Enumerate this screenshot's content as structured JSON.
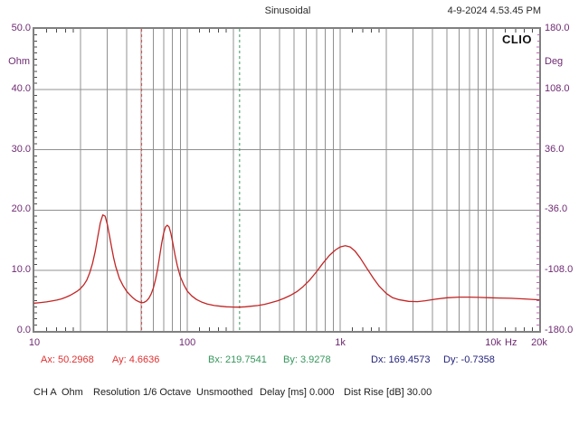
{
  "header": {
    "title": "Sinusoidal",
    "timestamp": "4-9-2024 4.53.45 PM"
  },
  "branding": {
    "logo": "CLIO"
  },
  "readout": {
    "ax": "Ax: 50.2968",
    "ay": "Ay: 4.6636",
    "bx": "Bx: 219.7541",
    "by": "By: 3.9278",
    "dx": "Dx: 169.4573",
    "dy": "Dy: -0.7358"
  },
  "status": {
    "items": [
      "CH A",
      "Ohm",
      "Resolution 1/6 Octave",
      "Unsmoothed",
      "Delay [ms] 0.000",
      "Dist Rise [dB] 30.00"
    ]
  },
  "colors": {
    "curve": "#c22525",
    "cursor_a": "#e05050",
    "cursor_b": "#36975c",
    "readout_a": "#e03030",
    "readout_b": "#36975c",
    "readout_d": "#1f1f7a",
    "axis_label": "#6e2a72",
    "grid": "#909090",
    "border": "#808080",
    "tick_minor": "#4a4a4a",
    "tick_right": "#c468b8",
    "header_text": "#2a2a2a"
  },
  "chart_data": {
    "type": "line",
    "title": "Sinusoidal",
    "x_axis": {
      "scale": "log",
      "unit": "Hz",
      "min": 10,
      "max": 20000,
      "ticks": [
        {
          "label": "10",
          "f": 10
        },
        {
          "label": "100",
          "f": 100
        },
        {
          "label": "1k",
          "f": 1000
        },
        {
          "label": "10k",
          "f": 10000
        },
        {
          "label": "20k",
          "f": 20000
        }
      ],
      "grid_freqs": [
        20,
        30,
        40,
        50,
        60,
        70,
        80,
        90,
        100,
        200,
        300,
        400,
        500,
        600,
        700,
        800,
        900,
        1000,
        2000,
        3000,
        4000,
        5000,
        6000,
        7000,
        8000,
        9000,
        10000
      ]
    },
    "y_left": {
      "unit": "Ohm",
      "min": 0,
      "max": 50,
      "ticks": [
        {
          "label": "50.0",
          "value": 50
        },
        {
          "label": "40.0",
          "value": 40
        },
        {
          "label": "30.0",
          "value": 30
        },
        {
          "label": "20.0",
          "value": 20
        },
        {
          "label": "10.0",
          "value": 10
        },
        {
          "label": "0.0",
          "value": 0
        }
      ]
    },
    "y_right": {
      "unit": "Deg",
      "min": -180,
      "max": 180,
      "ticks": [
        {
          "label": "180.0",
          "value": 180
        },
        {
          "label": "108.0",
          "value": 108
        },
        {
          "label": "36.0",
          "value": 36
        },
        {
          "label": "-36.0",
          "value": -36
        },
        {
          "label": "-108.0",
          "value": -108
        },
        {
          "label": "-180.0",
          "value": -180
        }
      ]
    },
    "cursors": {
      "a": {
        "freq": 50.2968,
        "value": 4.6636
      },
      "b": {
        "freq": 219.7541,
        "value": 3.9278
      },
      "delta": {
        "freq": 169.4573,
        "value": -0.7358
      }
    },
    "series": [
      {
        "name": "impedance-magnitude",
        "points": [
          [
            10,
            4.6
          ],
          [
            11,
            4.7
          ],
          [
            12,
            4.8
          ],
          [
            13,
            4.95
          ],
          [
            14,
            5.1
          ],
          [
            15,
            5.3
          ],
          [
            16,
            5.55
          ],
          [
            17,
            5.85
          ],
          [
            18,
            6.2
          ],
          [
            19,
            6.55
          ],
          [
            20,
            7.0
          ],
          [
            21,
            7.6
          ],
          [
            22,
            8.4
          ],
          [
            23,
            9.6
          ],
          [
            24,
            11.2
          ],
          [
            25,
            13.2
          ],
          [
            26,
            15.6
          ],
          [
            27,
            17.9
          ],
          [
            28,
            19.2
          ],
          [
            29,
            19.0
          ],
          [
            30,
            17.6
          ],
          [
            31,
            15.7
          ],
          [
            32,
            13.8
          ],
          [
            33,
            12.1
          ],
          [
            34,
            10.7
          ],
          [
            36,
            8.7
          ],
          [
            38,
            7.5
          ],
          [
            40,
            6.6
          ],
          [
            42,
            6.0
          ],
          [
            44,
            5.5
          ],
          [
            46,
            5.1
          ],
          [
            48,
            4.85
          ],
          [
            50.3,
            4.66
          ],
          [
            52,
            4.72
          ],
          [
            54,
            4.95
          ],
          [
            56,
            5.4
          ],
          [
            58,
            6.1
          ],
          [
            60,
            7.1
          ],
          [
            62,
            8.5
          ],
          [
            64,
            10.3
          ],
          [
            66,
            12.4
          ],
          [
            68,
            14.5
          ],
          [
            70,
            16.2
          ],
          [
            72,
            17.2
          ],
          [
            74,
            17.5
          ],
          [
            76,
            17.2
          ],
          [
            78,
            16.2
          ],
          [
            80,
            14.8
          ],
          [
            83,
            12.6
          ],
          [
            86,
            10.8
          ],
          [
            90,
            9.0
          ],
          [
            95,
            7.6
          ],
          [
            100,
            6.6
          ],
          [
            107,
            5.8
          ],
          [
            115,
            5.2
          ],
          [
            125,
            4.75
          ],
          [
            135,
            4.45
          ],
          [
            150,
            4.2
          ],
          [
            165,
            4.08
          ],
          [
            180,
            4.0
          ],
          [
            200,
            3.95
          ],
          [
            220,
            3.93
          ],
          [
            240,
            4.0
          ],
          [
            260,
            4.08
          ],
          [
            290,
            4.2
          ],
          [
            320,
            4.4
          ],
          [
            350,
            4.65
          ],
          [
            390,
            5.0
          ],
          [
            430,
            5.4
          ],
          [
            470,
            5.85
          ],
          [
            520,
            6.5
          ],
          [
            570,
            7.3
          ],
          [
            630,
            8.4
          ],
          [
            700,
            9.8
          ],
          [
            770,
            11.2
          ],
          [
            850,
            12.5
          ],
          [
            930,
            13.4
          ],
          [
            1000,
            13.9
          ],
          [
            1080,
            14.1
          ],
          [
            1160,
            13.9
          ],
          [
            1250,
            13.2
          ],
          [
            1350,
            12.1
          ],
          [
            1500,
            10.3
          ],
          [
            1650,
            8.7
          ],
          [
            1800,
            7.4
          ],
          [
            2000,
            6.2
          ],
          [
            2200,
            5.5
          ],
          [
            2400,
            5.2
          ],
          [
            2800,
            4.9
          ],
          [
            3200,
            4.85
          ],
          [
            3600,
            5.0
          ],
          [
            4200,
            5.25
          ],
          [
            5000,
            5.5
          ],
          [
            6000,
            5.6
          ],
          [
            7000,
            5.6
          ],
          [
            8000,
            5.55
          ],
          [
            9500,
            5.5
          ],
          [
            11000,
            5.45
          ],
          [
            13000,
            5.4
          ],
          [
            16000,
            5.3
          ],
          [
            20000,
            5.15
          ]
        ]
      }
    ],
    "grid": true,
    "legend": null
  }
}
